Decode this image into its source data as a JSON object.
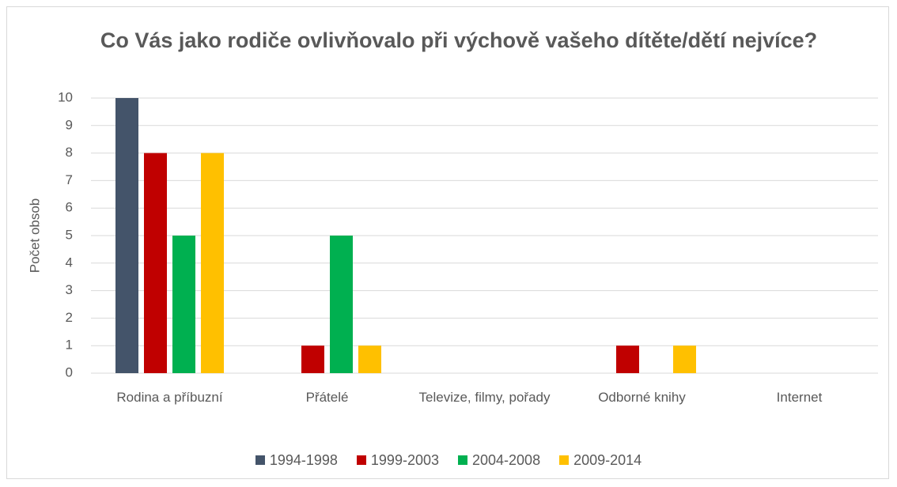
{
  "chart_data": {
    "type": "bar",
    "title": "Co Vás jako rodiče ovlivňovalo při výchově vašeho dítěte/dětí nejvíce?",
    "y_label": "Počet obsob",
    "categories": [
      "Rodina a příbuzní",
      "Přátelé",
      "Televize, filmy, pořady",
      "Odborné knihy",
      "Internet"
    ],
    "series": [
      {
        "name": "1994-1998",
        "color": "#44546a",
        "values": [
          10,
          0,
          0,
          0,
          0
        ]
      },
      {
        "name": "1999-2003",
        "color": "#c00000",
        "values": [
          8,
          1,
          0,
          1,
          0
        ]
      },
      {
        "name": "2004-2008",
        "color": "#00b050",
        "values": [
          5,
          5,
          0,
          0,
          0
        ]
      },
      {
        "name": "2009-2014",
        "color": "#ffc000",
        "values": [
          8,
          1,
          0,
          1,
          0
        ]
      }
    ],
    "ylim": [
      0,
      10
    ],
    "yticks": [
      0,
      1,
      2,
      3,
      4,
      5,
      6,
      7,
      8,
      9,
      10
    ],
    "grid": true,
    "legend": "bottom"
  }
}
